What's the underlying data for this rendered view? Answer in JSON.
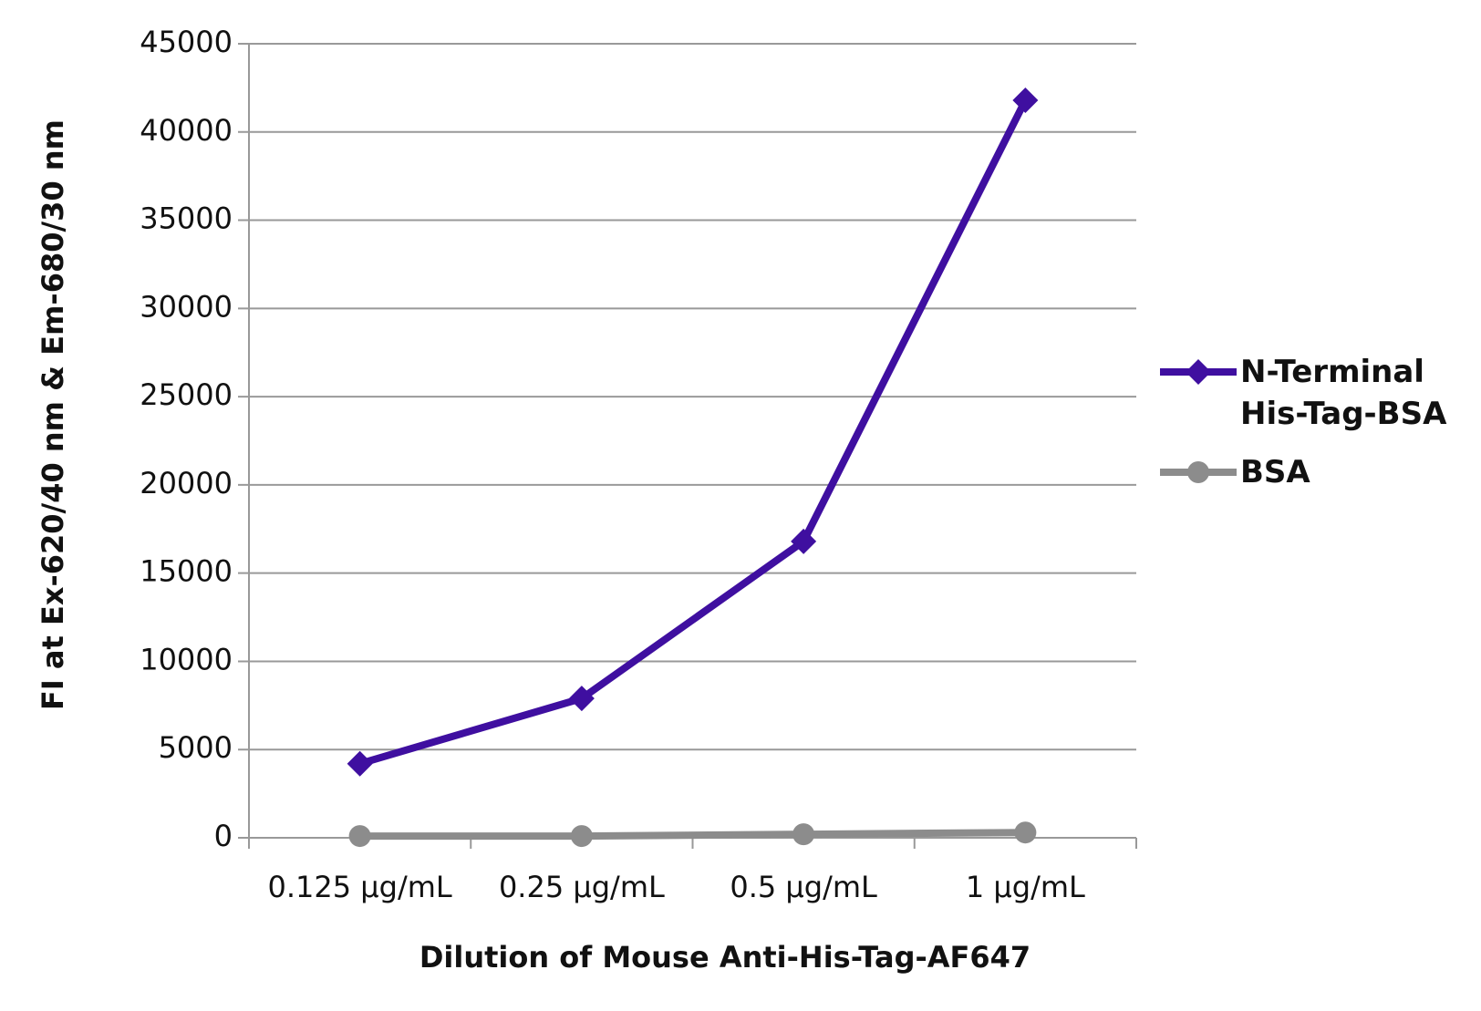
{
  "chart_data": {
    "type": "line",
    "x_label": "Dilution of Mouse Anti-His-Tag-AF647",
    "y_label": "FI at Ex-620/40 nm & Em-680/30 nm",
    "categories": [
      "0.125 µg/mL",
      "0.25 µg/mL",
      "0.5 µg/mL",
      "1 µg/mL"
    ],
    "series": [
      {
        "name": "N-Terminal His-Tag-BSA",
        "color": "#3f0fa0",
        "marker": "diamond",
        "values": [
          4200,
          7900,
          16800,
          41800
        ]
      },
      {
        "name": "BSA",
        "color": "#8c8c8c",
        "marker": "circle",
        "values": [
          100,
          100,
          200,
          300
        ]
      }
    ],
    "ylim": [
      0,
      45000
    ],
    "yticks": [
      0,
      5000,
      10000,
      15000,
      20000,
      25000,
      30000,
      35000,
      40000,
      45000
    ],
    "grid": true,
    "legend": "right"
  }
}
